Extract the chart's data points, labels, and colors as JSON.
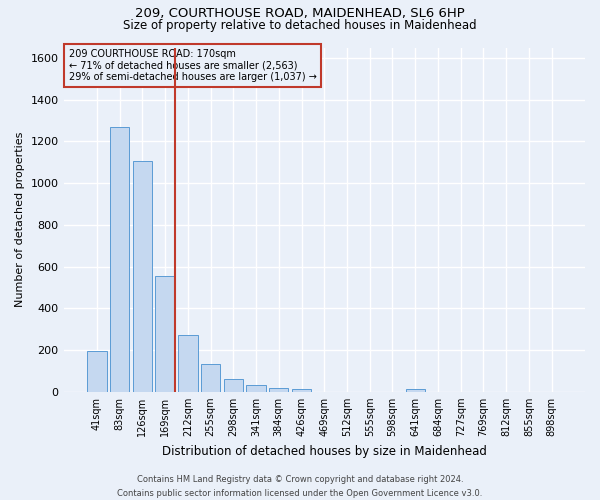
{
  "title_line1": "209, COURTHOUSE ROAD, MAIDENHEAD, SL6 6HP",
  "title_line2": "Size of property relative to detached houses in Maidenhead",
  "xlabel": "Distribution of detached houses by size in Maidenhead",
  "ylabel": "Number of detached properties",
  "footnote_line1": "Contains HM Land Registry data © Crown copyright and database right 2024.",
  "footnote_line2": "Contains public sector information licensed under the Open Government Licence v3.0.",
  "bar_labels": [
    "41sqm",
    "83sqm",
    "126sqm",
    "169sqm",
    "212sqm",
    "255sqm",
    "298sqm",
    "341sqm",
    "384sqm",
    "426sqm",
    "469sqm",
    "512sqm",
    "555sqm",
    "598sqm",
    "641sqm",
    "684sqm",
    "727sqm",
    "769sqm",
    "812sqm",
    "855sqm",
    "898sqm"
  ],
  "bar_values": [
    197,
    1270,
    1105,
    553,
    270,
    135,
    62,
    35,
    18,
    12,
    0,
    0,
    0,
    0,
    12,
    0,
    0,
    0,
    0,
    0,
    0
  ],
  "bar_color": "#c5d8f0",
  "bar_edge_color": "#5b9bd5",
  "bg_color": "#eaf0f9",
  "grid_color": "#ffffff",
  "vline_color": "#c0392b",
  "annotation_line1": "209 COURTHOUSE ROAD: 170sqm",
  "annotation_line2": "← 71% of detached houses are smaller (2,563)",
  "annotation_line3": "29% of semi-detached houses are larger (1,037) →",
  "annotation_box_edge": "#c0392b",
  "annotation_fontsize": 7.0,
  "ylim": [
    0,
    1650
  ],
  "yticks": [
    0,
    200,
    400,
    600,
    800,
    1000,
    1200,
    1400,
    1600
  ],
  "title_fontsize": 9.5,
  "subtitle_fontsize": 8.5,
  "ylabel_fontsize": 8.0,
  "xlabel_fontsize": 8.5,
  "xtick_fontsize": 7.0,
  "ytick_fontsize": 8.0,
  "footnote_fontsize": 6.0
}
